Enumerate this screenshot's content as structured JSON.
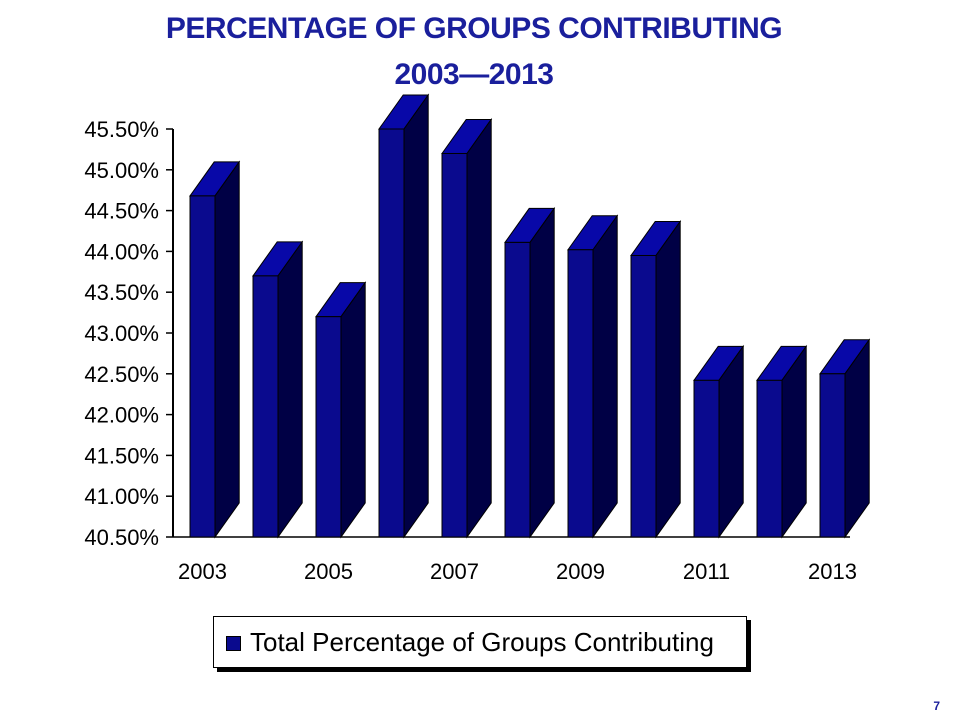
{
  "slide": {
    "title_line1": "PERCENTAGE OF GROUPS CONTRIBUTING",
    "title_line2": "2003—2013",
    "page_number": "7"
  },
  "chart_data": {
    "type": "bar",
    "title": "PERCENTAGE OF GROUPS CONTRIBUTING 2003—2013",
    "categories": [
      "2003",
      "2004",
      "2005",
      "2006",
      "2007",
      "2008",
      "2009",
      "2010",
      "2011",
      "2012",
      "2013"
    ],
    "x_tick_labels": [
      "2003",
      "2005",
      "2007",
      "2009",
      "2011",
      "2013"
    ],
    "series": [
      {
        "name": "Total Percentage of Groups Contributing",
        "values": [
          44.68,
          43.7,
          43.2,
          45.5,
          45.2,
          44.11,
          44.02,
          43.95,
          42.42,
          42.42,
          42.5
        ],
        "color": "#0a0a8e"
      }
    ],
    "y_ticks": [
      "40.50%",
      "41.00%",
      "41.50%",
      "42.00%",
      "42.50%",
      "43.00%",
      "43.50%",
      "44.00%",
      "44.50%",
      "45.00%",
      "45.50%"
    ],
    "ylim": [
      40.5,
      45.5
    ],
    "xlabel": "",
    "ylabel": "",
    "legend_position": "bottom",
    "style": "3d-bars",
    "grid": false
  }
}
